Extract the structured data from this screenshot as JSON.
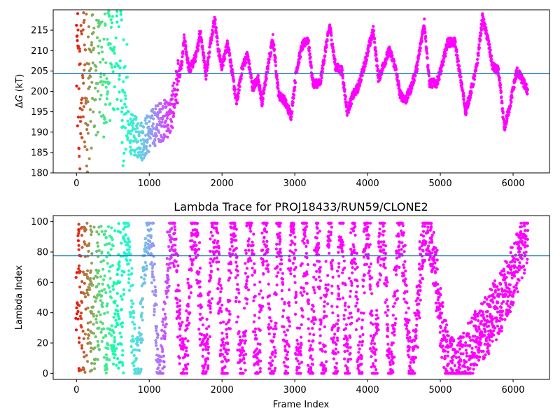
{
  "chart_data": [
    {
      "type": "scatter",
      "title": "",
      "xlabel": "",
      "ylabel": "ΔG (kT)",
      "ylabel_parts": {
        "delta": "Δ",
        "var": "G",
        "unit": " (kT)"
      },
      "xlim": [
        -320,
        6500
      ],
      "ylim": [
        180,
        220
      ],
      "xticks": [
        0,
        1000,
        2000,
        3000,
        4000,
        5000,
        6000
      ],
      "yticks": [
        180,
        185,
        190,
        195,
        200,
        205,
        210,
        215
      ],
      "hline": 204.4,
      "hline_color": "#1f77b4",
      "colormap": "rainbow (red at frame 0 → violet at later frames)",
      "x_max": 6200,
      "trace_anchors": [
        [
          0,
          210
        ],
        [
          40,
          195
        ],
        [
          90,
          205
        ],
        [
          150,
          200
        ],
        [
          220,
          207
        ],
        [
          300,
          210
        ],
        [
          400,
          208
        ],
        [
          500,
          214
        ],
        [
          600,
          215
        ],
        [
          650,
          195
        ],
        [
          720,
          190
        ],
        [
          800,
          189
        ],
        [
          900,
          188
        ],
        [
          1000,
          190
        ],
        [
          1100,
          192
        ],
        [
          1200,
          193
        ],
        [
          1300,
          194
        ],
        [
          1350,
          199
        ],
        [
          1400,
          203
        ],
        [
          1450,
          207
        ],
        [
          1480,
          213
        ],
        [
          1550,
          205
        ],
        [
          1650,
          209
        ],
        [
          1700,
          215
        ],
        [
          1780,
          204
        ],
        [
          1850,
          213
        ],
        [
          1900,
          218
        ],
        [
          1950,
          210
        ],
        [
          2000,
          206
        ],
        [
          2080,
          212
        ],
        [
          2120,
          207
        ],
        [
          2200,
          197
        ],
        [
          2280,
          206
        ],
        [
          2350,
          209
        ],
        [
          2420,
          201
        ],
        [
          2500,
          203
        ],
        [
          2550,
          197
        ],
        [
          2620,
          205
        ],
        [
          2700,
          213
        ],
        [
          2780,
          199
        ],
        [
          2850,
          198
        ],
        [
          2950,
          194
        ],
        [
          3020,
          205
        ],
        [
          3100,
          211
        ],
        [
          3180,
          213
        ],
        [
          3250,
          202
        ],
        [
          3350,
          202
        ],
        [
          3420,
          210
        ],
        [
          3480,
          216
        ],
        [
          3560,
          206
        ],
        [
          3650,
          205
        ],
        [
          3720,
          195
        ],
        [
          3800,
          199
        ],
        [
          3870,
          201
        ],
        [
          3950,
          206
        ],
        [
          4020,
          211
        ],
        [
          4080,
          215
        ],
        [
          4150,
          203
        ],
        [
          4230,
          207
        ],
        [
          4300,
          210
        ],
        [
          4380,
          206
        ],
        [
          4450,
          199
        ],
        [
          4530,
          198
        ],
        [
          4600,
          201
        ],
        [
          4680,
          206
        ],
        [
          4780,
          217
        ],
        [
          4850,
          202
        ],
        [
          4950,
          202
        ],
        [
          5020,
          206
        ],
        [
          5100,
          212
        ],
        [
          5200,
          212
        ],
        [
          5280,
          203
        ],
        [
          5350,
          195
        ],
        [
          5420,
          200
        ],
        [
          5500,
          206
        ],
        [
          5580,
          218
        ],
        [
          5650,
          213
        ],
        [
          5720,
          206
        ],
        [
          5800,
          205
        ],
        [
          5880,
          191
        ],
        [
          5950,
          196
        ],
        [
          6050,
          205
        ],
        [
          6120,
          203
        ],
        [
          6200,
          200
        ]
      ]
    },
    {
      "type": "scatter",
      "title": "Lambda Trace for PROJ18433/RUN59/CLONE2",
      "xlabel": "Frame Index",
      "ylabel": "Lambda Index",
      "xlim": [
        -320,
        6500
      ],
      "ylim": [
        -4,
        104
      ],
      "xticks": [
        0,
        1000,
        2000,
        3000,
        4000,
        5000,
        6000
      ],
      "yticks": [
        0,
        20,
        40,
        60,
        80,
        100
      ],
      "hline": 77.5,
      "hline_color": "#1f77b4",
      "colormap": "rainbow (red at frame 0 → violet at later frames)",
      "x_max": 6200,
      "lambda_range": [
        0,
        99
      ]
    }
  ]
}
